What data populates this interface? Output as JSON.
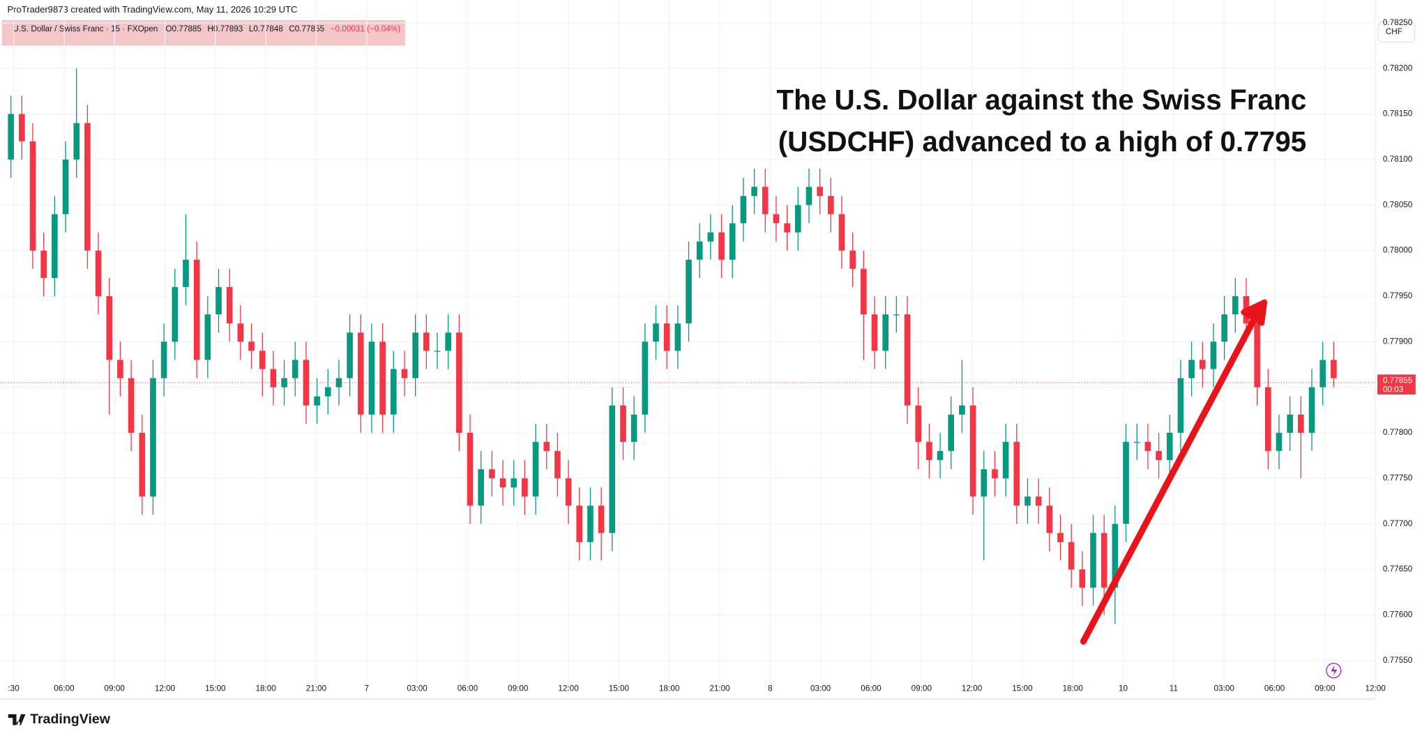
{
  "header": "ProTrader9873 created with TradingView.com, May 11, 2026 10:29 UTC",
  "legend": {
    "symbol": "U.S. Dollar / Swiss Franc · 15 · FXOpen",
    "open": "O0.77885",
    "high": "H0.77893",
    "low": "L0.77848",
    "close": "C0.77855",
    "change": "−0.00031 (−0.04%)"
  },
  "currency": "CHF",
  "brand": "TradingView",
  "chart_data": {
    "type": "candlestick",
    "annotation": [
      "The U.S. Dollar against the Swiss Franc",
      "(USDCHF) advanced to a high of 0.7795"
    ],
    "up_color": "#089981",
    "down_color": "#f23645",
    "last_price": {
      "value": 0.77855,
      "label": "0.77855",
      "countdown": "00:03"
    },
    "xtick_labels": [
      ":30",
      "06:00",
      "09:00",
      "12:00",
      "15:00",
      "18:00",
      "21:00",
      "7",
      "03:00",
      "06:00",
      "09:00",
      "12:00",
      "15:00",
      "18:00",
      "21:00",
      "8",
      "03:00",
      "06:00",
      "09:00",
      "12:00",
      "15:00",
      "18:00",
      "10",
      "11",
      "03:00",
      "06:00",
      "09:00",
      "12:00"
    ],
    "ylim": [
      0.77508,
      0.78275
    ],
    "yticks": [
      {
        "value": 0.7755,
        "label": "0.77550"
      },
      {
        "value": 0.776,
        "label": "0.77600"
      },
      {
        "value": 0.7765,
        "label": "0.77650"
      },
      {
        "value": 0.777,
        "label": "0.77700"
      },
      {
        "value": 0.7775,
        "label": "0.77750"
      },
      {
        "value": 0.778,
        "label": "0.77800"
      },
      {
        "value": 0.7785,
        "label": "0.77850"
      },
      {
        "value": 0.779,
        "label": "0.77900"
      },
      {
        "value": 0.7795,
        "label": "0.77950"
      },
      {
        "value": 0.78,
        "label": "0.78000"
      },
      {
        "value": 0.7805,
        "label": "0.78050"
      },
      {
        "value": 0.781,
        "label": "0.78100"
      },
      {
        "value": 0.7815,
        "label": "0.78150"
      },
      {
        "value": 0.782,
        "label": "0.78200"
      },
      {
        "value": 0.7825,
        "label": "0.78250"
      }
    ],
    "open": [
      0.781,
      0.7815,
      0.7812,
      0.78,
      0.7797,
      0.7804,
      0.781,
      0.7814,
      0.78,
      0.7795,
      0.7788,
      0.7786,
      0.778,
      0.7773,
      0.7786,
      0.779,
      0.7796,
      0.7799,
      0.7788,
      0.7793,
      0.7796,
      0.7792,
      0.779,
      0.7789,
      0.7787,
      0.7785,
      0.7786,
      0.7788,
      0.7783,
      0.7784,
      0.7785,
      0.7786,
      0.7791,
      0.7782,
      0.779,
      0.7782,
      0.7787,
      0.7786,
      0.7791,
      0.7789,
      0.7789,
      0.7791,
      0.778,
      0.7772,
      0.7776,
      0.7775,
      0.7774,
      0.7775,
      0.7773,
      0.7779,
      0.7778,
      0.7775,
      0.7772,
      0.7768,
      0.7772,
      0.7769,
      0.7783,
      0.7779,
      0.7782,
      0.779,
      0.7792,
      0.7789,
      0.7792,
      0.7799,
      0.7801,
      0.7802,
      0.7799,
      0.7803,
      0.7806,
      0.7807,
      0.7804,
      0.7803,
      0.7802,
      0.7805,
      0.7807,
      0.7806,
      0.7804,
      0.78,
      0.7798,
      0.7793,
      0.7789,
      0.7793,
      0.7793,
      0.7783,
      0.7779,
      0.7777,
      0.7778,
      0.7782,
      0.7783,
      0.7773,
      0.7776,
      0.7775,
      0.7779,
      0.7772,
      0.7773,
      0.7772,
      0.7769,
      0.7768,
      0.7765,
      0.7763,
      0.7769,
      0.7763,
      0.777,
      0.7779,
      0.7779,
      0.7778,
      0.7777,
      0.778,
      0.7786,
      0.7788,
      0.7787,
      0.779,
      0.7793,
      0.7795,
      0.7792,
      0.7785,
      0.7778,
      0.778,
      0.7782,
      0.778,
      0.7785,
      0.7788
    ],
    "high": [
      0.7817,
      0.7817,
      0.7814,
      0.7802,
      0.7806,
      0.7812,
      0.782,
      0.7816,
      0.7802,
      0.7797,
      0.779,
      0.7788,
      0.7782,
      0.7788,
      0.7792,
      0.7798,
      0.7804,
      0.7801,
      0.7795,
      0.7798,
      0.7798,
      0.7794,
      0.7792,
      0.7791,
      0.7789,
      0.7788,
      0.779,
      0.779,
      0.7786,
      0.7787,
      0.7788,
      0.7793,
      0.7793,
      0.7792,
      0.7792,
      0.7789,
      0.7789,
      0.7793,
      0.7793,
      0.7791,
      0.7793,
      0.7793,
      0.7782,
      0.7778,
      0.7778,
      0.7777,
      0.7777,
      0.7777,
      0.7781,
      0.7781,
      0.778,
      0.7777,
      0.7774,
      0.7774,
      0.7774,
      0.7785,
      0.7785,
      0.7784,
      0.7792,
      0.7794,
      0.7794,
      0.7794,
      0.7801,
      0.7803,
      0.7804,
      0.7804,
      0.7805,
      0.7808,
      0.7809,
      0.7809,
      0.7806,
      0.7805,
      0.7807,
      0.7809,
      0.7809,
      0.7808,
      0.7806,
      0.7802,
      0.78,
      0.7795,
      0.7795,
      0.7795,
      0.7795,
      0.7785,
      0.7781,
      0.778,
      0.7784,
      0.7788,
      0.7785,
      0.7778,
      0.7778,
      0.7781,
      0.7781,
      0.7775,
      0.7775,
      0.7774,
      0.7771,
      0.777,
      0.7767,
      0.7771,
      0.7771,
      0.7772,
      0.7781,
      0.7781,
      0.7781,
      0.778,
      0.7782,
      0.7788,
      0.779,
      0.779,
      0.7792,
      0.7795,
      0.7797,
      0.7797,
      0.7794,
      0.7787,
      0.7782,
      0.7784,
      0.7784,
      0.7787,
      0.779,
      0.779
    ],
    "low": [
      0.7808,
      0.781,
      0.7798,
      0.7795,
      0.7795,
      0.7802,
      0.7808,
      0.7798,
      0.7793,
      0.7782,
      0.7784,
      0.7778,
      0.7771,
      0.7771,
      0.7784,
      0.7788,
      0.7794,
      0.7786,
      0.7786,
      0.7791,
      0.779,
      0.7788,
      0.7787,
      0.7784,
      0.7783,
      0.7783,
      0.7784,
      0.7781,
      0.7781,
      0.7782,
      0.7783,
      0.7784,
      0.778,
      0.778,
      0.778,
      0.778,
      0.7784,
      0.7784,
      0.7787,
      0.7787,
      0.7787,
      0.7778,
      0.777,
      0.777,
      0.7773,
      0.7772,
      0.7772,
      0.7771,
      0.7771,
      0.7776,
      0.7773,
      0.777,
      0.7766,
      0.7766,
      0.7766,
      0.7767,
      0.7777,
      0.7777,
      0.778,
      0.7788,
      0.7787,
      0.7787,
      0.779,
      0.7797,
      0.7799,
      0.7797,
      0.7797,
      0.7801,
      0.7804,
      0.7802,
      0.7801,
      0.78,
      0.78,
      0.7803,
      0.7804,
      0.7802,
      0.7798,
      0.7796,
      0.7788,
      0.7787,
      0.7787,
      0.7791,
      0.7781,
      0.7776,
      0.7775,
      0.7775,
      0.7776,
      0.778,
      0.7771,
      0.7766,
      0.7773,
      0.7773,
      0.777,
      0.777,
      0.777,
      0.7767,
      0.7766,
      0.7763,
      0.7761,
      0.7761,
      0.776,
      0.7759,
      0.7768,
      0.7777,
      0.7776,
      0.7775,
      0.7775,
      0.7778,
      0.7784,
      0.7785,
      0.7785,
      0.7788,
      0.7791,
      0.779,
      0.7783,
      0.7776,
      0.7776,
      0.7778,
      0.7775,
      0.7778,
      0.7783,
      0.7785
    ],
    "close": [
      0.7815,
      0.7812,
      0.78,
      0.7797,
      0.7804,
      0.781,
      0.7814,
      0.78,
      0.7795,
      0.7788,
      0.7786,
      0.778,
      0.7773,
      0.7786,
      0.779,
      0.7796,
      0.7799,
      0.7788,
      0.7793,
      0.7796,
      0.7792,
      0.779,
      0.7789,
      0.7787,
      0.7785,
      0.7786,
      0.7788,
      0.7783,
      0.7784,
      0.7785,
      0.7786,
      0.7791,
      0.7782,
      0.779,
      0.7782,
      0.7787,
      0.7786,
      0.7791,
      0.7789,
      0.7789,
      0.7791,
      0.778,
      0.7772,
      0.7776,
      0.7775,
      0.7774,
      0.7775,
      0.7773,
      0.7779,
      0.7778,
      0.7775,
      0.7772,
      0.7768,
      0.7772,
      0.7769,
      0.7783,
      0.7779,
      0.7782,
      0.779,
      0.7792,
      0.7789,
      0.7792,
      0.7799,
      0.7801,
      0.7802,
      0.7799,
      0.7803,
      0.7806,
      0.7807,
      0.7804,
      0.7803,
      0.7802,
      0.7805,
      0.7807,
      0.7806,
      0.7804,
      0.78,
      0.7798,
      0.7793,
      0.7789,
      0.7793,
      0.7793,
      0.7783,
      0.7779,
      0.7777,
      0.7778,
      0.7782,
      0.7783,
      0.7773,
      0.7776,
      0.7775,
      0.7779,
      0.7772,
      0.7773,
      0.7772,
      0.7769,
      0.7768,
      0.7765,
      0.7763,
      0.7769,
      0.7763,
      0.777,
      0.7779,
      0.7779,
      0.7778,
      0.7777,
      0.778,
      0.7786,
      0.7788,
      0.7787,
      0.779,
      0.7793,
      0.7795,
      0.7792,
      0.7785,
      0.7778,
      0.778,
      0.7782,
      0.778,
      0.7785,
      0.7788,
      0.7786
    ]
  }
}
